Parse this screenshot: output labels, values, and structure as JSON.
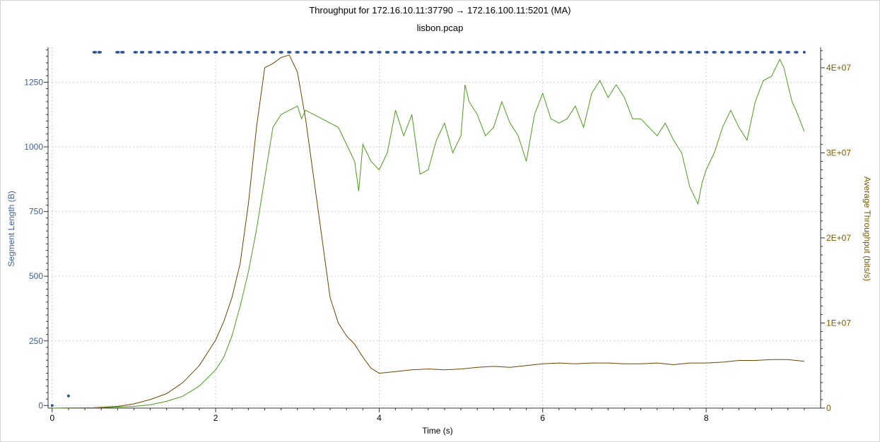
{
  "chart_data": {
    "type": "line",
    "title": "Throughput for 172.16.10.11:37790 → 172.16.100.11:5201 (MA)",
    "subtitle": "lisbon.pcap",
    "xlabel": "Time (s)",
    "ylabel_left": "Segment Length (B)",
    "ylabel_right": "Average Throughput (bits/s)",
    "xlim": [
      -0.05,
      9.4
    ],
    "ylim_left": [
      -10,
      1385
    ],
    "ylim_right": [
      0,
      42400000
    ],
    "xticks": [
      0,
      2,
      4,
      6,
      8
    ],
    "yticks_left": [
      0,
      250,
      500,
      750,
      1000,
      1250
    ],
    "yticks_right": [
      0,
      10000000,
      20000000,
      30000000,
      40000000
    ],
    "yticklabels_right": [
      "0",
      "1E+07",
      "2E+07",
      "3E+07",
      "4E+07"
    ],
    "grid": true,
    "colors": {
      "segment": "#2e5596",
      "throughput": "#6b4400",
      "goodput": "#4d9a1e"
    },
    "series": [
      {
        "axis": "left",
        "kind": "scatter",
        "x": [
          0.0,
          0.2,
          0.52,
          0.58,
          0.8,
          0.86,
          1.02,
          1.1,
          1.2,
          1.3,
          1.4,
          1.5,
          1.6,
          1.7,
          1.8,
          1.9,
          2.0,
          2.1,
          2.2,
          2.3,
          2.4,
          2.5,
          2.6,
          2.7,
          2.8,
          2.9,
          3.0,
          3.1,
          3.2,
          3.3,
          3.4,
          3.5,
          3.6,
          3.7,
          3.8,
          3.9,
          4.0,
          4.1,
          4.2,
          4.3,
          4.4,
          4.5,
          4.6,
          4.7,
          4.8,
          4.9,
          5.0,
          5.1,
          5.2,
          5.3,
          5.4,
          5.5,
          5.6,
          5.7,
          5.8,
          5.9,
          6.0,
          6.1,
          6.2,
          6.3,
          6.4,
          6.5,
          6.6,
          6.7,
          6.8,
          6.9,
          7.0,
          7.1,
          7.2,
          7.3,
          7.4,
          7.5,
          7.6,
          7.7,
          7.8,
          7.9,
          8.0,
          8.1,
          8.2,
          8.3,
          8.4,
          8.5,
          8.6,
          8.7,
          8.8,
          8.9,
          9.0,
          9.1,
          9.2
        ],
        "y": [
          0,
          37,
          1366,
          1366,
          1366,
          1366,
          1366,
          1366,
          1366,
          1366,
          1366,
          1366,
          1366,
          1366,
          1366,
          1366,
          1366,
          1366,
          1366,
          1366,
          1366,
          1366,
          1366,
          1366,
          1366,
          1366,
          1366,
          1366,
          1366,
          1366,
          1366,
          1366,
          1366,
          1366,
          1366,
          1366,
          1366,
          1366,
          1366,
          1366,
          1366,
          1366,
          1366,
          1366,
          1366,
          1366,
          1366,
          1366,
          1366,
          1366,
          1366,
          1366,
          1366,
          1366,
          1366,
          1366,
          1366,
          1366,
          1366,
          1366,
          1366,
          1366,
          1366,
          1366,
          1366,
          1366,
          1366,
          1366,
          1366,
          1366,
          1366,
          1366,
          1366,
          1366,
          1366,
          1366,
          1366,
          1366,
          1366,
          1366,
          1366,
          1366,
          1366,
          1366,
          1366,
          1366,
          1366,
          1366,
          1366
        ]
      },
      {
        "axis": "right",
        "kind": "line",
        "x": [
          0.0,
          0.5,
          0.8,
          1.0,
          1.2,
          1.4,
          1.6,
          1.8,
          2.0,
          2.1,
          2.2,
          2.3,
          2.4,
          2.5,
          2.6,
          2.7,
          2.8,
          2.9,
          3.0,
          3.1,
          3.2,
          3.3,
          3.4,
          3.5,
          3.6,
          3.7,
          3.8,
          3.9,
          4.0,
          4.2,
          4.4,
          4.6,
          4.8,
          5.0,
          5.2,
          5.4,
          5.6,
          5.8,
          6.0,
          6.2,
          6.4,
          6.6,
          6.8,
          7.0,
          7.2,
          7.4,
          7.6,
          7.8,
          8.0,
          8.2,
          8.4,
          8.6,
          8.8,
          9.0,
          9.2
        ],
        "y": [
          0,
          50000,
          200000,
          500000,
          1000000,
          1700000,
          3000000,
          5000000,
          8000000,
          10200000,
          13000000,
          17000000,
          24000000,
          33000000,
          40000000,
          40500000,
          41200000,
          41500000,
          39500000,
          34000000,
          27000000,
          20000000,
          13000000,
          10000000,
          8500000,
          7500000,
          6000000,
          4700000,
          4100000,
          4300000,
          4500000,
          4600000,
          4500000,
          4600000,
          4800000,
          4900000,
          4800000,
          5000000,
          5200000,
          5300000,
          5200000,
          5300000,
          5300000,
          5200000,
          5200000,
          5300000,
          5100000,
          5300000,
          5300000,
          5400000,
          5600000,
          5600000,
          5700000,
          5700000,
          5500000
        ]
      },
      {
        "axis": "right",
        "kind": "line",
        "x": [
          0.0,
          0.6,
          1.0,
          1.2,
          1.4,
          1.6,
          1.8,
          2.0,
          2.1,
          2.2,
          2.3,
          2.4,
          2.5,
          2.6,
          2.7,
          2.8,
          2.9,
          3.0,
          3.05,
          3.1,
          3.2,
          3.3,
          3.4,
          3.5,
          3.6,
          3.7,
          3.75,
          3.8,
          3.9,
          4.0,
          4.1,
          4.2,
          4.3,
          4.4,
          4.5,
          4.6,
          4.7,
          4.8,
          4.9,
          5.0,
          5.05,
          5.1,
          5.2,
          5.3,
          5.4,
          5.5,
          5.6,
          5.7,
          5.8,
          5.9,
          6.0,
          6.1,
          6.2,
          6.3,
          6.4,
          6.5,
          6.6,
          6.7,
          6.8,
          6.9,
          7.0,
          7.1,
          7.2,
          7.3,
          7.4,
          7.5,
          7.6,
          7.7,
          7.8,
          7.9,
          7.95,
          8.0,
          8.1,
          8.2,
          8.3,
          8.4,
          8.5,
          8.6,
          8.7,
          8.8,
          8.9,
          8.95,
          9.0,
          9.05,
          9.1,
          9.2
        ],
        "y": [
          0,
          50000,
          200000,
          400000,
          800000,
          1400000,
          2600000,
          4500000,
          6000000,
          8500000,
          12000000,
          16000000,
          21000000,
          27000000,
          33000000,
          34500000,
          35000000,
          35500000,
          34000000,
          35000000,
          34500000,
          34000000,
          33500000,
          33000000,
          31000000,
          29000000,
          25500000,
          31000000,
          29000000,
          28000000,
          30000000,
          35000000,
          32000000,
          34500000,
          27500000,
          28000000,
          31500000,
          33500000,
          30000000,
          32000000,
          38000000,
          36000000,
          34500000,
          32000000,
          33000000,
          36000000,
          33500000,
          32000000,
          29000000,
          34500000,
          37000000,
          34000000,
          33500000,
          34000000,
          35500000,
          33000000,
          37000000,
          38500000,
          36500000,
          38000000,
          36500000,
          34000000,
          34000000,
          33000000,
          32000000,
          33500000,
          31500000,
          30000000,
          26000000,
          24000000,
          26500000,
          28000000,
          30000000,
          33000000,
          35000000,
          33000000,
          31500000,
          36000000,
          38500000,
          39000000,
          41000000,
          40000000,
          38000000,
          36000000,
          35000000,
          32500000
        ]
      }
    ]
  }
}
